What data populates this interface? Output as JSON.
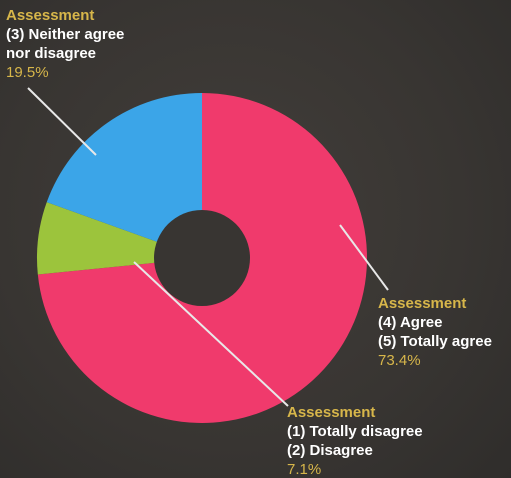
{
  "chart_data": {
    "type": "pie",
    "donut": true,
    "title": "",
    "categories": [
      "(4) Agree / (5) Totally agree",
      "(1) Totally disagree / (2) Disagree",
      "(3) Neither agree nor disagree"
    ],
    "values": [
      73.4,
      7.1,
      19.5
    ],
    "colors": [
      "#f03a6c",
      "#9cc43c",
      "#3ba5e8"
    ],
    "start": "12 o'clock",
    "direction": "clockwise",
    "legend": "callout labels"
  },
  "labels": {
    "neutral": {
      "head": "Assessment",
      "lines": [
        "(3) Neither agree",
        "nor disagree"
      ],
      "pct": "19.5%"
    },
    "agree": {
      "head": "Assessment",
      "lines": [
        "(4) Agree",
        "(5) Totally agree"
      ],
      "pct": "73.4%"
    },
    "disagree": {
      "head": "Assessment",
      "lines": [
        "(1) Totally disagree",
        "(2) Disagree"
      ],
      "pct": "7.1%"
    }
  },
  "colors": {
    "background": "#3a3734",
    "heading": "#d7b64a",
    "text": "#ffffff",
    "leader": "#e8e8e8"
  }
}
